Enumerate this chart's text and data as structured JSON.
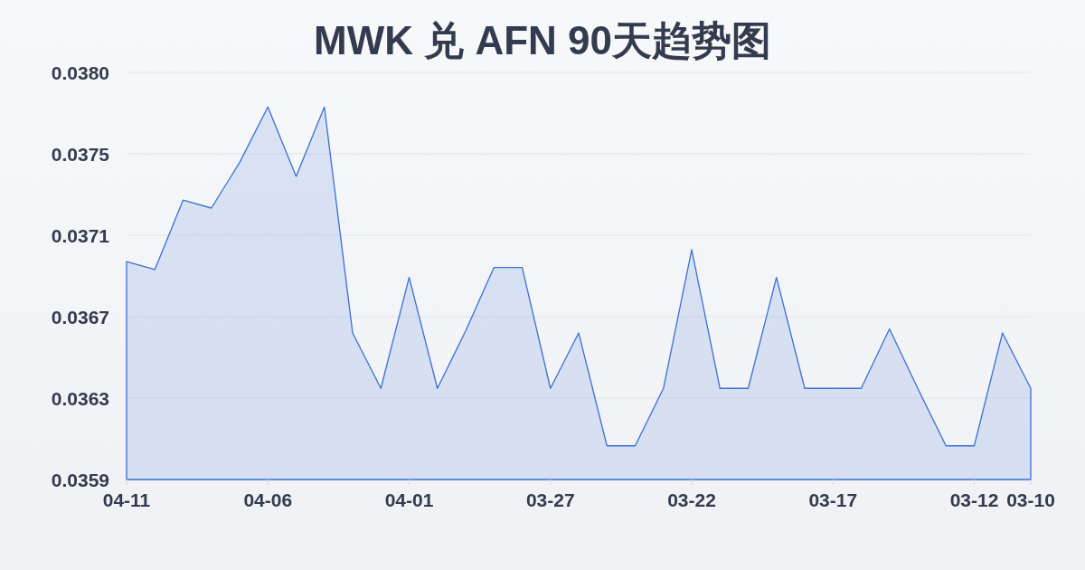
{
  "chart_data": {
    "type": "area",
    "title": "MWK 兑 AFN 90天趋势图",
    "x": [
      "--04-11",
      "--04-10",
      "--04-09",
      "--04-08",
      "--04-07",
      "--04-06",
      "--04-05",
      "--04-04",
      "--04-03",
      "--04-02",
      "--04-01",
      "--03-31",
      "--03-30",
      "--03-29",
      "--03-28",
      "--03-27",
      "--03-26",
      "--03-25",
      "--03-24",
      "--03-23",
      "--03-22",
      "--03-21",
      "--03-20",
      "--03-19",
      "--03-18",
      "--03-17",
      "--03-16",
      "--03-15",
      "--03-14",
      "--03-13",
      "--03-12",
      "--03-11",
      "--03-10"
    ],
    "values": [
      0.037,
      0.03696,
      0.03731,
      0.03727,
      0.0375,
      0.03778,
      0.03743,
      0.03778,
      0.03664,
      0.03636,
      0.03692,
      0.03636,
      0.03665,
      0.03697,
      0.03697,
      0.03636,
      0.03664,
      0.03607,
      0.03607,
      0.03636,
      0.03706,
      0.03636,
      0.03636,
      0.03692,
      0.03636,
      0.03636,
      0.03636,
      0.03666,
      0.03636,
      0.03607,
      0.03607,
      0.03664,
      0.03636
    ],
    "color": "#3b6fd4",
    "xlim": [
      "--04-11",
      "--03-10"
    ],
    "xticks": [
      {
        "value": "--04-11",
        "label": "04-11"
      },
      {
        "value": "--04-06",
        "label": "04-06"
      },
      {
        "value": "--04-01",
        "label": "04-01"
      },
      {
        "value": "--03-27",
        "label": "03-27"
      },
      {
        "value": "--03-22",
        "label": "03-22"
      },
      {
        "value": "--03-17",
        "label": "03-17"
      },
      {
        "value": "--03-12",
        "label": "03-12"
      },
      {
        "value": "--03-10",
        "label": "03-10"
      }
    ],
    "ylim": [
      0.0359,
      0.037955
    ],
    "yticks": [
      0.0359,
      {
        "value": 0.036311,
        "label": "0.0363"
      },
      {
        "value": 0.036722,
        "label": "0.0367"
      },
      {
        "value": 0.037133,
        "label": "0.0371"
      },
      {
        "value": 0.037544,
        "label": "0.0375"
      },
      {
        "value": 0.037955,
        "label": "0.0380"
      }
    ],
    "grid": "y"
  }
}
